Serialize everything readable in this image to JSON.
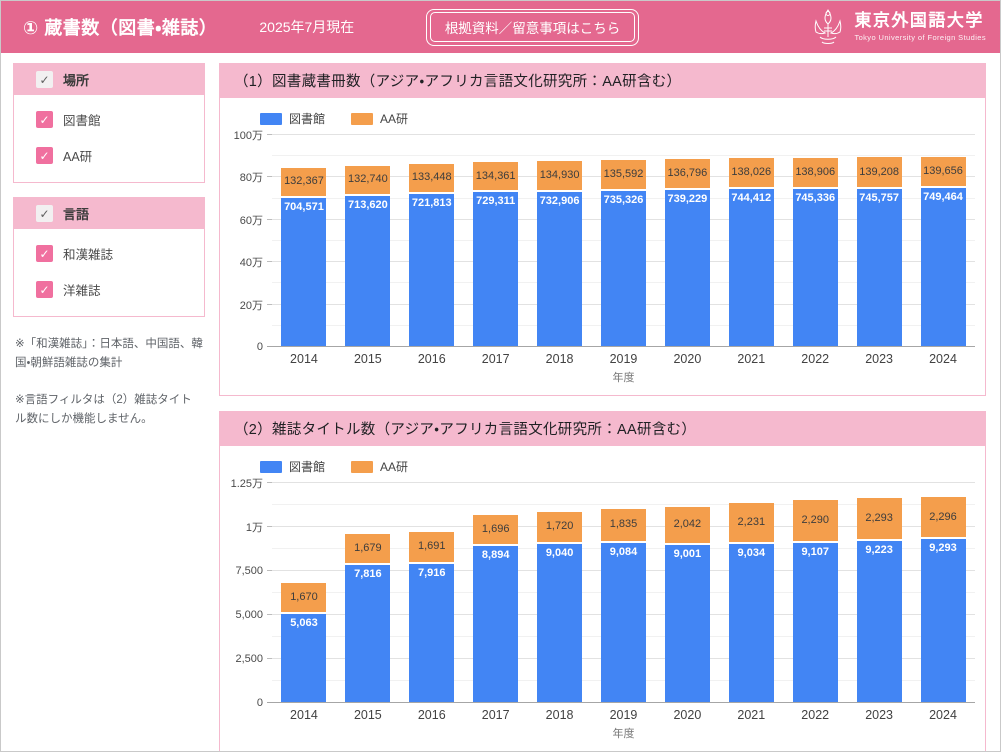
{
  "header": {
    "title": "① 蔵書数（図書・雑誌）",
    "date": "2025年7月現在",
    "link_button": "根拠資料／留意事項はこちら",
    "logo_jp": "東京外国語大学",
    "logo_en": "Tokyo University of Foreign Studies"
  },
  "colors": {
    "header_pink": "#E4688F",
    "panel_pink": "#F5B9CE",
    "checkbox_pink": "#F0709F",
    "series_library_blue": "#4285F4",
    "series_aa_orange": "#F49E4C"
  },
  "sidebar": {
    "filters": [
      {
        "title": "場所",
        "items": [
          "図書館",
          "AA研"
        ]
      },
      {
        "title": "言語",
        "items": [
          "和漢雑誌",
          "洋雑誌"
        ]
      }
    ],
    "notes": [
      "※「和漢雑誌」：日本語、中国語、韓国・朝鮮語雑誌の集計",
      "※言語フィルタは（2）雑誌タイトル数にしか機能しません。"
    ]
  },
  "chart_data": [
    {
      "type": "bar",
      "stacked": true,
      "title": "（1）図書蔵書冊数（アジア・アフリカ言語文化研究所：AA研含む）",
      "categories": [
        "2014",
        "2015",
        "2016",
        "2017",
        "2018",
        "2019",
        "2020",
        "2021",
        "2022",
        "2023",
        "2024"
      ],
      "series": [
        {
          "name": "図書館",
          "color": "#4285F4",
          "values": [
            704571,
            713620,
            721813,
            729311,
            732906,
            735326,
            739229,
            744412,
            745336,
            745757,
            749464
          ]
        },
        {
          "name": "AA研",
          "color": "#F49E4C",
          "values": [
            132367,
            132740,
            133448,
            134361,
            134930,
            135592,
            136796,
            138026,
            138906,
            139208,
            139656
          ]
        }
      ],
      "xlabel": "年度",
      "ylim": [
        0,
        1000000
      ],
      "yticks": [
        {
          "v": 0,
          "label": "0"
        },
        {
          "v": 200000,
          "label": "20万"
        },
        {
          "v": 400000,
          "label": "40万"
        },
        {
          "v": 600000,
          "label": "60万"
        },
        {
          "v": 800000,
          "label": "80万"
        },
        {
          "v": 1000000,
          "label": "100万"
        }
      ],
      "minor_step": 100000,
      "grid": true,
      "legend_position": "top"
    },
    {
      "type": "bar",
      "stacked": true,
      "title": "（2）雑誌タイトル数（アジア・アフリカ言語文化研究所：AA研含む）",
      "categories": [
        "2014",
        "2015",
        "2016",
        "2017",
        "2018",
        "2019",
        "2020",
        "2021",
        "2022",
        "2023",
        "2024"
      ],
      "series": [
        {
          "name": "図書館",
          "color": "#4285F4",
          "values": [
            5063,
            7816,
            7916,
            8894,
            9040,
            9084,
            9001,
            9034,
            9107,
            9223,
            9293
          ]
        },
        {
          "name": "AA研",
          "color": "#F49E4C",
          "values": [
            1670,
            1679,
            1691,
            1696,
            1720,
            1835,
            2042,
            2231,
            2290,
            2293,
            2296
          ]
        }
      ],
      "xlabel": "年度",
      "ylim": [
        0,
        12500
      ],
      "yticks": [
        {
          "v": 0,
          "label": "0"
        },
        {
          "v": 2500,
          "label": "2,500"
        },
        {
          "v": 5000,
          "label": "5,000"
        },
        {
          "v": 7500,
          "label": "7,500"
        },
        {
          "v": 10000,
          "label": "1万"
        },
        {
          "v": 12500,
          "label": "1.25万"
        }
      ],
      "minor_step": 1250,
      "grid": true,
      "legend_position": "top"
    }
  ]
}
